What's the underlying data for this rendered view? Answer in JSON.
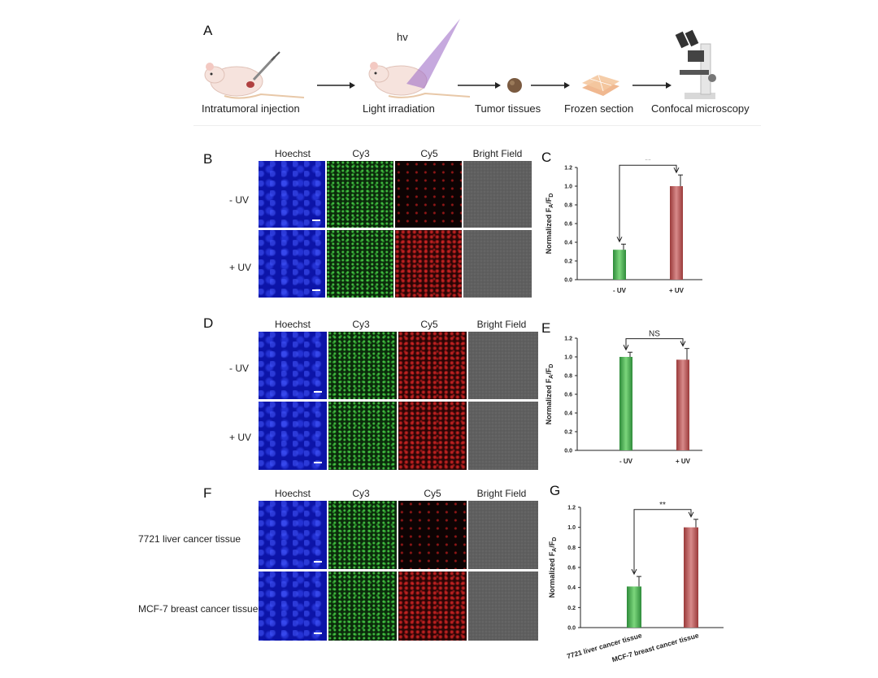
{
  "panel_a": {
    "label": "A",
    "hv_label": "hv",
    "steps": [
      "Intratumoral  injection",
      "Light irradiation",
      "Tumor tissues",
      "Frozen section",
      "Confocal microscopy"
    ]
  },
  "panel_b": {
    "label": "B",
    "headers": [
      "Hoechst",
      "Cy3",
      "Cy5",
      "Bright Field"
    ],
    "rows": [
      "- UV",
      "+ UV"
    ]
  },
  "panel_d": {
    "label": "D",
    "headers": [
      "Hoechst",
      "Cy3",
      "Cy5",
      "Bright Field"
    ],
    "rows": [
      "- UV",
      "+ UV"
    ]
  },
  "panel_f": {
    "label": "F",
    "headers": [
      "Hoechst",
      "Cy3",
      "Cy5",
      "Bright Field"
    ],
    "rows": [
      "7721 liver cancer tissue",
      "MCF-7 breast cancer tissue"
    ]
  },
  "colors": {
    "green_bar": "#4caf50",
    "red_bar": "#c25555"
  },
  "chart_data": [
    {
      "panel": "C",
      "type": "bar",
      "categories": [
        "- UV",
        "+ UV"
      ],
      "values": [
        0.32,
        1.0
      ],
      "errors": [
        0.06,
        0.12
      ],
      "ylabel": "Normalized FA/FD",
      "ylabel_main": "Normalized F",
      "ylabel_sub1": "A",
      "ylabel_mid": "/F",
      "ylabel_sub2": "D",
      "ylim": [
        0,
        1.2
      ],
      "yticks": [
        "0.0",
        "0.2",
        "0.4",
        "0.6",
        "0.8",
        "1.0",
        "1.2"
      ],
      "significance": "**"
    },
    {
      "panel": "E",
      "type": "bar",
      "categories": [
        "- UV",
        "+ UV"
      ],
      "values": [
        1.0,
        0.97
      ],
      "errors": [
        0.05,
        0.12
      ],
      "ylabel": "Normalized FA/FD",
      "ylabel_main": "Normalized F",
      "ylabel_sub1": "A",
      "ylabel_mid": "/F",
      "ylabel_sub2": "D",
      "ylim": [
        0,
        1.2
      ],
      "yticks": [
        "0.0",
        "0.2",
        "0.4",
        "0.6",
        "0.8",
        "1.0",
        "1.2"
      ],
      "significance": "NS"
    },
    {
      "panel": "G",
      "type": "bar",
      "categories": [
        "7721 liver cancer tissue",
        "MCF-7 breast cancer tissue"
      ],
      "values": [
        0.41,
        1.0
      ],
      "errors": [
        0.1,
        0.08
      ],
      "ylabel": "Normalized FA/FD",
      "ylabel_main": "Normalized F",
      "ylabel_sub1": "A",
      "ylabel_mid": "/F",
      "ylabel_sub2": "D",
      "ylim": [
        0,
        1.2
      ],
      "yticks": [
        "0.0",
        "0.2",
        "0.4",
        "0.6",
        "0.8",
        "1.0",
        "1.2"
      ],
      "significance": "**"
    }
  ]
}
